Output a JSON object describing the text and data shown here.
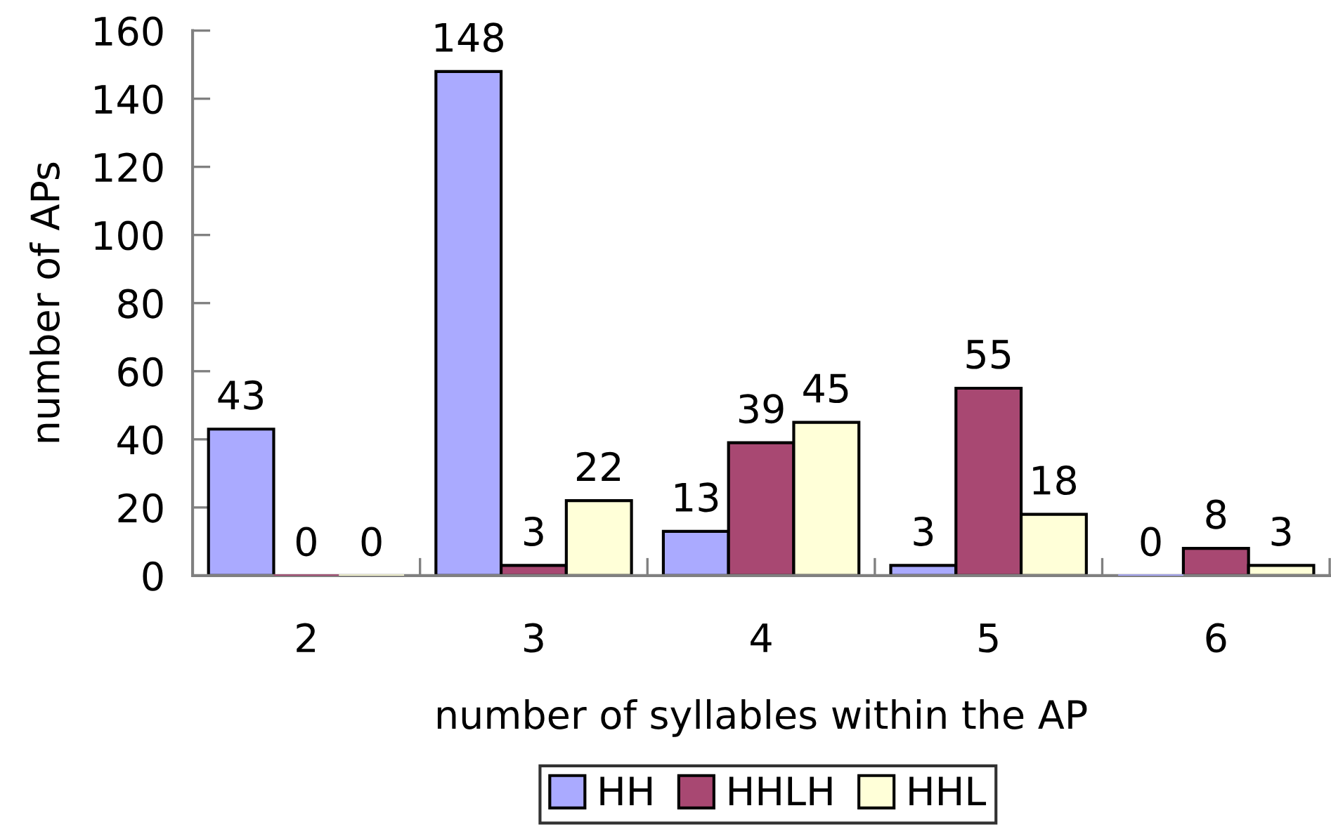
{
  "chart_data": {
    "type": "bar",
    "categories": [
      "2",
      "3",
      "4",
      "5",
      "6"
    ],
    "xlabel": "number of syllables within the AP",
    "ylabel": "number of APs",
    "series": [
      {
        "name": "HH",
        "color": "#aaaaff",
        "values": [
          43,
          148,
          13,
          3,
          0
        ]
      },
      {
        "name": "HHLH",
        "color": "#a84872",
        "values": [
          0,
          3,
          39,
          55,
          8
        ]
      },
      {
        "name": "HHL",
        "color": "#ffffd8",
        "values": [
          0,
          22,
          45,
          18,
          3
        ]
      }
    ],
    "ylim": [
      0,
      160
    ],
    "yticks": [
      0,
      20,
      40,
      60,
      80,
      100,
      120,
      140,
      160
    ],
    "data_labels": true,
    "legend": "bottom",
    "grid": false
  }
}
